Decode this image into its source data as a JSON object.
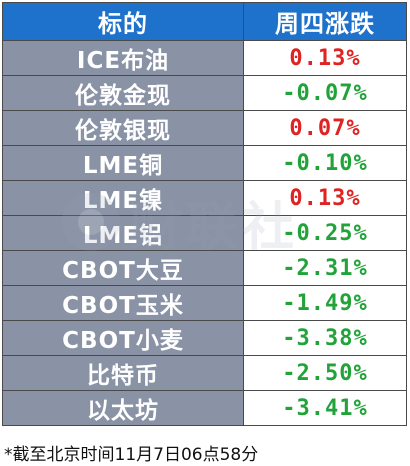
{
  "table": {
    "headers": {
      "name": "标的",
      "change": "周四涨跌"
    },
    "rows": [
      {
        "name": "ICE布油",
        "change": "0.13%",
        "direction": "up"
      },
      {
        "name": "伦敦金现",
        "change": "-0.07%",
        "direction": "down"
      },
      {
        "name": "伦敦银现",
        "change": "0.07%",
        "direction": "up"
      },
      {
        "name": "LME铜",
        "change": "-0.10%",
        "direction": "down"
      },
      {
        "name": "LME镍",
        "change": "0.13%",
        "direction": "up"
      },
      {
        "name": "LME铝",
        "change": "-0.25%",
        "direction": "down"
      },
      {
        "name": "CBOT大豆",
        "change": "-2.31%",
        "direction": "down"
      },
      {
        "name": "CBOT玉米",
        "change": "-1.49%",
        "direction": "down"
      },
      {
        "name": "CBOT小麦",
        "change": "-3.38%",
        "direction": "down"
      },
      {
        "name": "比特币",
        "change": "-2.50%",
        "direction": "down"
      },
      {
        "name": "以太坊",
        "change": "-3.41%",
        "direction": "down"
      }
    ]
  },
  "watermark": {
    "text": "财联社"
  },
  "footnote": "*截至北京时间11月7日06点58分",
  "colors": {
    "header_bg": "#1f72cc",
    "name_cell_bg": "#8a93a6",
    "up": "#e02222",
    "down": "#21a33a"
  }
}
